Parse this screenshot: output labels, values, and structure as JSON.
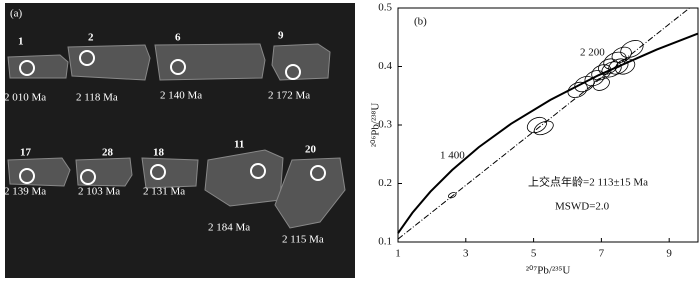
{
  "panel_a": {
    "label": "(a)",
    "grains": [
      {
        "number": "1",
        "age": "2 010 Ma"
      },
      {
        "number": "2",
        "age": "2 118 Ma"
      },
      {
        "number": "6",
        "age": "2 140 Ma"
      },
      {
        "number": "9",
        "age": "2 172 Ma"
      },
      {
        "number": "17",
        "age": "2 139 Ma"
      },
      {
        "number": "28",
        "age": "2 103 Ma"
      },
      {
        "number": "18",
        "age": "2 131 Ma"
      },
      {
        "number": "11",
        "age": "2 184 Ma"
      },
      {
        "number": "20",
        "age": "2 115 Ma"
      }
    ]
  },
  "chart_data": {
    "type": "scatter",
    "label": "(b)",
    "x_label": "²⁰⁷Pb/²³⁵U",
    "y_label": "²⁰⁶Pb/²³⁸U",
    "xlim": [
      1,
      9.85
    ],
    "ylim": [
      0.1,
      0.5
    ],
    "xticks": [
      1,
      3,
      5,
      7,
      9
    ],
    "yticks": [
      0.1,
      0.2,
      0.3,
      0.4,
      0.5
    ],
    "x": [
      2.6,
      5.1,
      5.3,
      6.3,
      6.5,
      6.8,
      7.0,
      7.0,
      7.2,
      7.3,
      7.4,
      7.5,
      7.6,
      7.7,
      7.9
    ],
    "values": [
      0.18,
      0.3,
      0.295,
      0.36,
      0.37,
      0.38,
      0.37,
      0.39,
      0.4,
      0.395,
      0.41,
      0.4,
      0.42,
      0.4,
      0.43
    ],
    "x_err": [
      0.12,
      0.3,
      0.3,
      0.3,
      0.3,
      0.3,
      0.25,
      0.3,
      0.3,
      0.3,
      0.35,
      0.3,
      0.3,
      0.3,
      0.35
    ],
    "y_err": [
      0.004,
      0.012,
      0.01,
      0.012,
      0.012,
      0.012,
      0.01,
      0.012,
      0.012,
      0.012,
      0.013,
      0.012,
      0.012,
      0.012,
      0.013
    ],
    "concordia": {
      "x": [
        1.0,
        1.426,
        1.955,
        2.598,
        3.381,
        4.334,
        5.496,
        6.911,
        8.633,
        9.84
      ],
      "y": [
        0.115,
        0.15,
        0.186,
        0.223,
        0.262,
        0.302,
        0.343,
        0.385,
        0.429,
        0.456
      ]
    },
    "discordia": {
      "x": [
        1.0,
        9.6
      ],
      "y": [
        0.105,
        0.5
      ]
    },
    "annotations": [
      "2 200",
      "1 400",
      "上交点年龄=2 113±15 Ma",
      "MSWD=2.0"
    ]
  }
}
